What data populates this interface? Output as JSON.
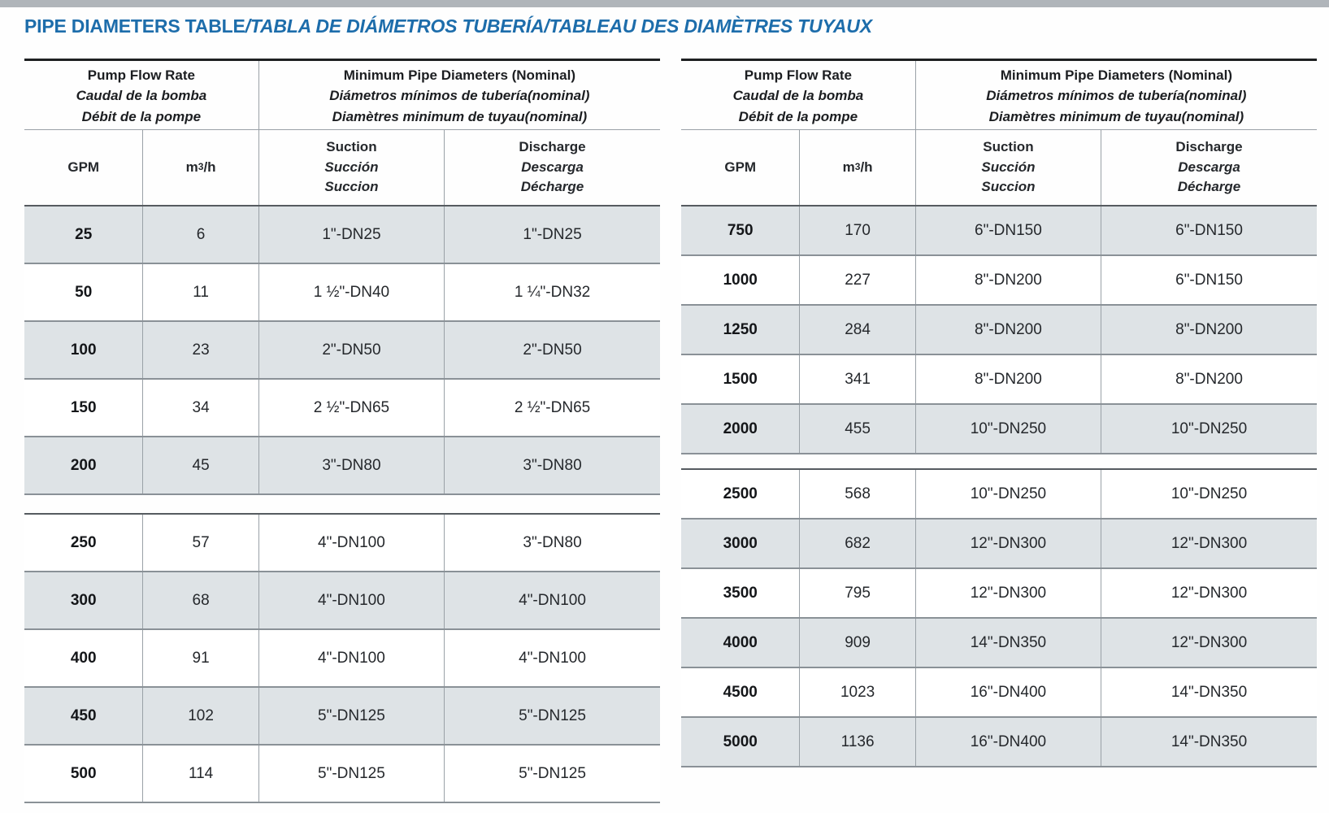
{
  "title": {
    "main": "PIPE DIAMETERS TABLE",
    "rest": "/TABLA DE DIÁMETROS TUBERÍA/TABLEAU DES DIAMÈTRES TUYAUX"
  },
  "header": {
    "flow_en": "Pump Flow Rate",
    "flow_es": "Caudal de la bomba",
    "flow_fr": "Débit de la pompe",
    "diam_en": "Minimum Pipe Diameters (Nominal)",
    "diam_es": "Diámetros mínimos de tubería(nominal)",
    "diam_fr": "Diamètres minimum de tuyau(nominal)",
    "gpm": "GPM",
    "m3h": {
      "base": "m",
      "sup": "3",
      "rest": "/h"
    },
    "suction_en": "Suction",
    "suction_es": "Succión",
    "suction_fr": "Succion",
    "discharge_en": "Discharge",
    "discharge_es": "Descarga",
    "discharge_fr": "Décharge"
  },
  "colors": {
    "title_blue": "#1d6dab",
    "row_shade": "#dee3e6"
  },
  "tables": [
    {
      "sections": [
        {
          "rows": [
            [
              "25",
              "6",
              "1\"-DN25",
              "1\"-DN25"
            ],
            [
              "50",
              "11",
              "1 ½\"-DN40",
              "1 ¼\"-DN32"
            ],
            [
              "100",
              "23",
              "2\"-DN50",
              "2\"-DN50"
            ],
            [
              "150",
              "34",
              "2 ½\"-DN65",
              "2 ½\"-DN65"
            ],
            [
              "200",
              "45",
              "3\"-DN80",
              "3\"-DN80"
            ]
          ]
        },
        {
          "rows": [
            [
              "250",
              "57",
              "4\"-DN100",
              "3\"-DN80"
            ],
            [
              "300",
              "68",
              "4\"-DN100",
              "4\"-DN100"
            ],
            [
              "400",
              "91",
              "4\"-DN100",
              "4\"-DN100"
            ],
            [
              "450",
              "102",
              "5\"-DN125",
              "5\"-DN125"
            ],
            [
              "500",
              "114",
              "5\"-DN125",
              "5\"-DN125"
            ]
          ]
        }
      ]
    },
    {
      "sections": [
        {
          "rows": [
            [
              "750",
              "170",
              "6\"-DN150",
              "6\"-DN150"
            ],
            [
              "1000",
              "227",
              "8\"-DN200",
              "6\"-DN150"
            ],
            [
              "1250",
              "284",
              "8\"-DN200",
              "8\"-DN200"
            ],
            [
              "1500",
              "341",
              "8\"-DN200",
              "8\"-DN200"
            ],
            [
              "2000",
              "455",
              "10\"-DN250",
              "10\"-DN250"
            ]
          ]
        },
        {
          "rows": [
            [
              "2500",
              "568",
              "10\"-DN250",
              "10\"-DN250"
            ],
            [
              "3000",
              "682",
              "12\"-DN300",
              "12\"-DN300"
            ],
            [
              "3500",
              "795",
              "12\"-DN300",
              "12\"-DN300"
            ],
            [
              "4000",
              "909",
              "14\"-DN350",
              "12\"-DN300"
            ],
            [
              "4500",
              "1023",
              "16\"-DN400",
              "14\"-DN350"
            ],
            [
              "5000",
              "1136",
              "16\"-DN400",
              "14\"-DN350"
            ]
          ]
        }
      ]
    }
  ]
}
